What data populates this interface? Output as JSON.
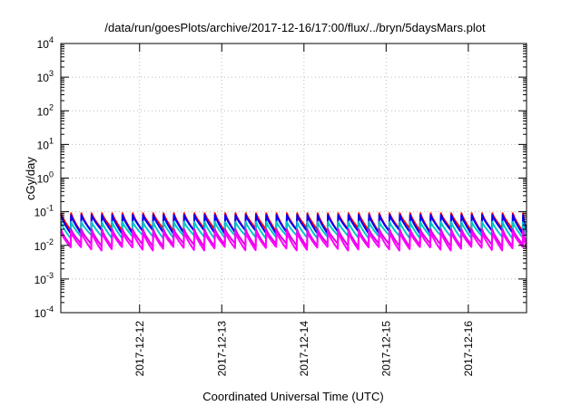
{
  "chart_data": {
    "type": "line",
    "title": "/data/run/goesPlots/archive/2017-12-16/17:00/flux/../bryn/5daysMars.plot",
    "xlabel": "Coordinated Universal Time (UTC)",
    "ylabel": "cGy/day",
    "yscale": "log",
    "ylim": [
      0.0001,
      10000
    ],
    "y_tick_exponents": [
      "-4",
      "-3",
      "-2",
      "-1",
      "0",
      "1",
      "2",
      "3",
      "4"
    ],
    "y_tick_base": "10",
    "xlim": [
      "2017-12-11T01:00",
      "2017-12-16T17:00"
    ],
    "x_ticks": [
      {
        "label": "2017-12-12",
        "value": "2017-12-12T00:00"
      },
      {
        "label": "2017-12-13",
        "value": "2017-12-13T00:00"
      },
      {
        "label": "2017-12-14",
        "value": "2017-12-14T00:00"
      },
      {
        "label": "2017-12-15",
        "value": "2017-12-15T00:00"
      },
      {
        "label": "2017-12-16",
        "value": "2017-12-16T00:00"
      }
    ],
    "grid": true,
    "legend": "none",
    "pattern": {
      "description": "sawtooth: sharp rise at each peak then decay",
      "peak_times": [
        "2017-12-11T01:00",
        "2017-12-11T04:00",
        "2017-12-11T07:00",
        "2017-12-11T10:00",
        "2017-12-11T13:00",
        "2017-12-11T16:00",
        "2017-12-11T19:00",
        "2017-12-11T22:00",
        "2017-12-12T01:00",
        "2017-12-12T04:00",
        "2017-12-12T07:00",
        "2017-12-12T10:00",
        "2017-12-12T13:00",
        "2017-12-12T16:00",
        "2017-12-12T19:00",
        "2017-12-12T22:00",
        "2017-12-13T01:00",
        "2017-12-13T04:00",
        "2017-12-13T07:00",
        "2017-12-13T10:00",
        "2017-12-13T13:00",
        "2017-12-13T16:00",
        "2017-12-13T19:00",
        "2017-12-13T22:00",
        "2017-12-14T01:00",
        "2017-12-14T04:00",
        "2017-12-14T07:00",
        "2017-12-14T10:00",
        "2017-12-14T13:00",
        "2017-12-14T16:00",
        "2017-12-14T19:00",
        "2017-12-14T22:00",
        "2017-12-15T01:00",
        "2017-12-15T04:00",
        "2017-12-15T07:00",
        "2017-12-15T10:00",
        "2017-12-15T13:00",
        "2017-12-15T16:00",
        "2017-12-15T19:00",
        "2017-12-15T22:00",
        "2017-12-16T01:00",
        "2017-12-16T04:00",
        "2017-12-16T07:00",
        "2017-12-16T10:00",
        "2017-12-16T13:00",
        "2017-12-16T16:00"
      ]
    },
    "series": [
      {
        "color": "#ff0000",
        "peak_value": 0.09,
        "trough_value": 0.025
      },
      {
        "color": "#0000ff",
        "peak_value": 0.08,
        "trough_value": 0.022
      },
      {
        "color": "#00c8c8",
        "peak_value": 0.05,
        "trough_value": 0.016
      },
      {
        "color": "#dd00dd",
        "peak_value": 0.03,
        "trough_value": 0.009
      },
      {
        "color": "#ff00ff",
        "peak_value": 0.025,
        "trough_value": 0.007
      }
    ]
  }
}
